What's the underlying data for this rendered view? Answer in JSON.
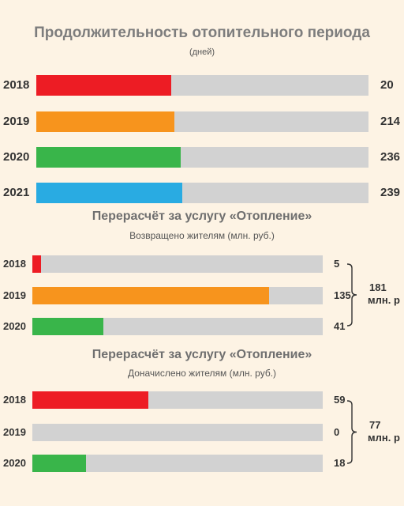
{
  "colors": {
    "red": "#ed1c24",
    "orange": "#f7941d",
    "green": "#39b54a",
    "blue": "#29abe2",
    "track": "#d2d2d2",
    "background": "#fdf3e4"
  },
  "chart_data": [
    {
      "type": "bar",
      "orientation": "horizontal",
      "title": "Продолжительность отопительного  периода",
      "subtitle": "(дней)",
      "categories": [
        "2018",
        "2019",
        "2020",
        "2021"
      ],
      "values": [
        20,
        214,
        236,
        239
      ],
      "value_labels": [
        "20",
        "214",
        "236",
        "239"
      ],
      "colors": [
        "#ed1c24",
        "#f7941d",
        "#39b54a",
        "#29abe2"
      ],
      "fill_fractions": [
        0.405,
        0.415,
        0.435,
        0.44
      ],
      "legend": "none",
      "grid": false
    },
    {
      "type": "bar",
      "orientation": "horizontal",
      "title": "Перерасчёт за услугу «Отопление»",
      "subtitle": "Возвращено жителям (млн. руб.)",
      "categories": [
        "2018",
        "2019",
        "2020"
      ],
      "values": [
        5,
        135,
        41
      ],
      "value_labels": [
        "5",
        "135",
        "41"
      ],
      "colors": [
        "#ed1c24",
        "#f7941d",
        "#39b54a"
      ],
      "fill_fractions": [
        0.03,
        0.815,
        0.245
      ],
      "total_lines": [
        "181",
        "млн. р"
      ],
      "legend": "none",
      "grid": false
    },
    {
      "type": "bar",
      "orientation": "horizontal",
      "title": "Перерасчёт за услугу «Отопление»",
      "subtitle": "Доначислено жителям (млн. руб.)",
      "categories": [
        "2018",
        "2019",
        "2020"
      ],
      "values": [
        59,
        0,
        18
      ],
      "value_labels": [
        "59",
        "0",
        "18"
      ],
      "colors": [
        "#ed1c24",
        "#f7941d",
        "#39b54a"
      ],
      "fill_fractions": [
        0.4,
        0,
        0.185
      ],
      "total_lines": [
        "77",
        "млн. р"
      ],
      "legend": "none",
      "grid": false
    }
  ]
}
